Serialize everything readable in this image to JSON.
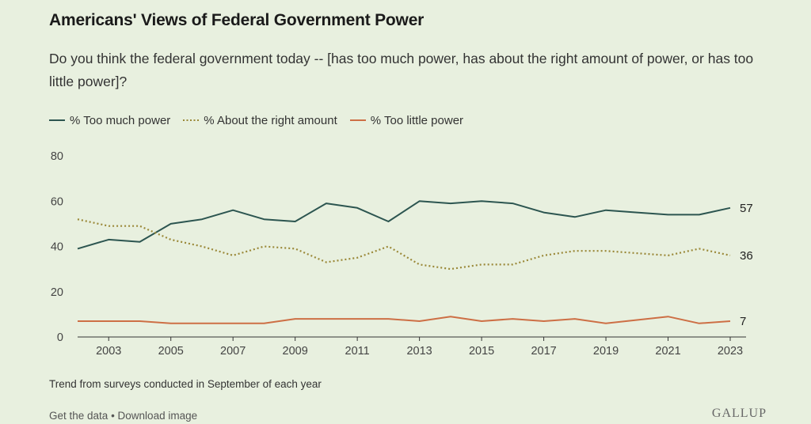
{
  "header": {
    "title": "Americans' Views of Federal Government Power",
    "subtitle": "Do you think the federal government today -- [has too much power, has about the right amount of power, or has too little power]?"
  },
  "footer": {
    "note": "Trend from surveys conducted in September of each year",
    "get_data": "Get the data",
    "separator": " • ",
    "download": "Download image",
    "logo": "GALLUP"
  },
  "chart_data": {
    "type": "line",
    "x": [
      2002,
      2003,
      2004,
      2005,
      2006,
      2007,
      2008,
      2009,
      2010,
      2011,
      2012,
      2013,
      2014,
      2015,
      2016,
      2017,
      2018,
      2019,
      2020,
      2021,
      2022,
      2023
    ],
    "x_tick_labels": [
      "2003",
      "2005",
      "2007",
      "2009",
      "2011",
      "2013",
      "2015",
      "2017",
      "2019",
      "2021",
      "2023"
    ],
    "y_ticks": [
      0,
      20,
      40,
      60,
      80
    ],
    "ylim": [
      0,
      80
    ],
    "grid": false,
    "legend_position": "top-left",
    "series": [
      {
        "name": "% Too much power",
        "color": "#2c5550",
        "style": "solid",
        "values": [
          39,
          43,
          42,
          50,
          52,
          56,
          52,
          51,
          59,
          57,
          51,
          60,
          59,
          60,
          59,
          55,
          53,
          56,
          55,
          54,
          54,
          57
        ],
        "end_label": "57"
      },
      {
        "name": "% About the right amount",
        "color": "#9a8838",
        "style": "dotted",
        "values": [
          52,
          49,
          49,
          43,
          40,
          36,
          40,
          39,
          33,
          35,
          40,
          32,
          30,
          32,
          32,
          36,
          38,
          38,
          37,
          36,
          39,
          36
        ],
        "end_label": "36"
      },
      {
        "name": "% Too little power",
        "color": "#cd6f45",
        "style": "solid",
        "values": [
          7,
          7,
          7,
          6,
          6,
          6,
          6,
          8,
          8,
          8,
          8,
          7,
          9,
          7,
          8,
          7,
          8,
          6,
          7.5,
          9,
          6,
          7
        ],
        "end_label": "7"
      }
    ]
  }
}
